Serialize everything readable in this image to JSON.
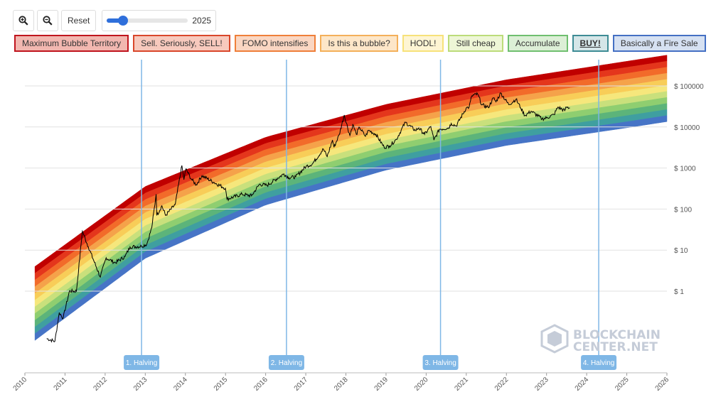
{
  "toolbar": {
    "zoom_in_icon": "zoom-in-icon",
    "zoom_out_icon": "zoom-out-icon",
    "reset_label": "Reset",
    "slider_value": "2025",
    "slider_min": 2010,
    "slider_max": 2026,
    "slider_fraction": 0.2
  },
  "legend": [
    {
      "label": "Maximum Bubble Territory",
      "bg": "#f2b7b0",
      "border": "#c0151e",
      "bold": false
    },
    {
      "label": "Sell. Seriously, SELL!",
      "bg": "#f7c9bd",
      "border": "#d9472b",
      "bold": false
    },
    {
      "label": "FOMO intensifies",
      "bg": "#fad6c2",
      "border": "#ef7f3a",
      "bold": false
    },
    {
      "label": "Is this a bubble?",
      "bg": "#fde6c8",
      "border": "#f4b05a",
      "bold": false
    },
    {
      "label": "HODL!",
      "bg": "#fef5d3",
      "border": "#f7e27a",
      "bold": false
    },
    {
      "label": "Still cheap",
      "bg": "#eef6d6",
      "border": "#bcdc7a",
      "bold": false
    },
    {
      "label": "Accumulate",
      "bg": "#dcefd6",
      "border": "#6fbf6f",
      "bold": false
    },
    {
      "label": "BUY!",
      "bg": "#d5e6e8",
      "border": "#3e8c95",
      "bold": true
    },
    {
      "label": "Basically a Fire Sale",
      "bg": "#d6e1f2",
      "border": "#4470c4",
      "bold": false
    }
  ],
  "watermark": {
    "line1": "BLOCKCHAIN",
    "line2": "CENTER.NET"
  },
  "chart_data": {
    "type": "line",
    "x_axis_type": "datetime",
    "y_scale": "log",
    "xlim": [
      "2010-01-01",
      "2026-01-01"
    ],
    "x_ticks": [
      "2010",
      "2011",
      "2012",
      "2013",
      "2014",
      "2015",
      "2016",
      "2017",
      "2018",
      "2019",
      "2020",
      "2021",
      "2022",
      "2023",
      "2024",
      "2025",
      "2026"
    ],
    "y_ticks": [
      {
        "value": 1,
        "label": "$ 1"
      },
      {
        "value": 10,
        "label": "$ 10"
      },
      {
        "value": 100,
        "label": "$ 100"
      },
      {
        "value": 1000,
        "label": "$ 1000"
      },
      {
        "value": 10000,
        "label": "$ 10000"
      },
      {
        "value": 100000,
        "label": "$ 100000"
      }
    ],
    "grid": true,
    "band_colors": [
      "#c00000",
      "#e4361c",
      "#f26b2a",
      "#f5a24a",
      "#f8cd58",
      "#f6e77c",
      "#c9e07c",
      "#8fce70",
      "#5cb47a",
      "#3f9fa0",
      "#4674c6"
    ],
    "bands_upper": {
      "years": [
        2010.25,
        2013,
        2016,
        2019,
        2022,
        2025,
        2026
      ],
      "top_log10": [
        0.6,
        2.55,
        3.75,
        4.55,
        5.15,
        5.6,
        5.75
      ]
    },
    "bands_lower": {
      "years": [
        2010.25,
        2013,
        2016,
        2019,
        2022,
        2025,
        2026
      ],
      "bottom_log10": [
        -1.2,
        0.8,
        2.1,
        2.95,
        3.55,
        3.98,
        4.13
      ]
    },
    "halvings": [
      {
        "date": "2012-11-28",
        "label": "1. Halving"
      },
      {
        "date": "2016-07-09",
        "label": "2. Halving"
      },
      {
        "date": "2020-05-11",
        "label": "3. Halving"
      },
      {
        "date": "2024-04-20",
        "label": "4. Halving"
      }
    ],
    "price_series": {
      "name": "",
      "points": [
        [
          "2010-07-18",
          0.07
        ],
        [
          "2010-10-01",
          0.06
        ],
        [
          "2010-11-10",
          0.3
        ],
        [
          "2010-12-15",
          0.22
        ],
        [
          "2011-02-10",
          1.0
        ],
        [
          "2011-04-15",
          1.0
        ],
        [
          "2011-06-08",
          29
        ],
        [
          "2011-08-01",
          12
        ],
        [
          "2011-11-18",
          2.2
        ],
        [
          "2012-01-10",
          6.5
        ],
        [
          "2012-04-01",
          4.9
        ],
        [
          "2012-07-01",
          7.0
        ],
        [
          "2012-08-15",
          12
        ],
        [
          "2012-11-28",
          12.4
        ],
        [
          "2013-01-15",
          14
        ],
        [
          "2013-03-01",
          35
        ],
        [
          "2013-04-10",
          230
        ],
        [
          "2013-04-16",
          70
        ],
        [
          "2013-06-01",
          120
        ],
        [
          "2013-07-05",
          70
        ],
        [
          "2013-10-01",
          130
        ],
        [
          "2013-11-30",
          1150
        ],
        [
          "2013-12-18",
          520
        ],
        [
          "2014-01-05",
          950
        ],
        [
          "2014-02-25",
          530
        ],
        [
          "2014-04-10",
          390
        ],
        [
          "2014-06-01",
          650
        ],
        [
          "2014-09-15",
          450
        ],
        [
          "2014-12-31",
          320
        ],
        [
          "2015-01-14",
          175
        ],
        [
          "2015-06-01",
          230
        ],
        [
          "2015-08-25",
          210
        ],
        [
          "2015-11-05",
          400
        ],
        [
          "2016-01-15",
          380
        ],
        [
          "2016-06-15",
          720
        ],
        [
          "2016-08-01",
          580
        ],
        [
          "2016-10-01",
          610
        ],
        [
          "2017-01-04",
          1100
        ],
        [
          "2017-03-01",
          1250
        ],
        [
          "2017-06-10",
          2900
        ],
        [
          "2017-07-15",
          1900
        ],
        [
          "2017-09-01",
          4800
        ],
        [
          "2017-09-15",
          3200
        ],
        [
          "2017-11-01",
          6500
        ],
        [
          "2017-12-17",
          19500
        ],
        [
          "2018-02-06",
          6200
        ],
        [
          "2018-03-05",
          11500
        ],
        [
          "2018-04-06",
          6600
        ],
        [
          "2018-05-05",
          9800
        ],
        [
          "2018-06-28",
          5900
        ],
        [
          "2018-07-25",
          8300
        ],
        [
          "2018-10-01",
          6600
        ],
        [
          "2018-12-15",
          3200
        ],
        [
          "2019-02-01",
          3450
        ],
        [
          "2019-04-05",
          5000
        ],
        [
          "2019-06-26",
          13000
        ],
        [
          "2019-09-25",
          8200
        ],
        [
          "2019-10-26",
          9500
        ],
        [
          "2019-12-18",
          6600
        ],
        [
          "2020-02-12",
          10300
        ],
        [
          "2020-03-12",
          4800
        ],
        [
          "2020-05-01",
          8800
        ],
        [
          "2020-07-25",
          9500
        ],
        [
          "2020-08-17",
          12200
        ],
        [
          "2020-10-01",
          10600
        ],
        [
          "2020-12-31",
          29000
        ],
        [
          "2021-01-27",
          30500
        ],
        [
          "2021-02-21",
          57500
        ],
        [
          "2021-04-14",
          63500
        ],
        [
          "2021-05-23",
          34500
        ],
        [
          "2021-07-20",
          29800
        ],
        [
          "2021-09-05",
          51000
        ],
        [
          "2021-09-28",
          41000
        ],
        [
          "2021-11-10",
          67500
        ],
        [
          "2022-01-22",
          35000
        ],
        [
          "2022-03-29",
          47500
        ],
        [
          "2022-05-12",
          29000
        ],
        [
          "2022-06-18",
          19000
        ],
        [
          "2022-08-14",
          24300
        ],
        [
          "2022-11-21",
          15700
        ],
        [
          "2023-01-01",
          16600
        ],
        [
          "2023-03-10",
          20000
        ],
        [
          "2023-04-14",
          30500
        ],
        [
          "2023-06-15",
          25000
        ],
        [
          "2023-07-01",
          30500
        ],
        [
          "2023-08-01",
          29000
        ]
      ]
    }
  }
}
